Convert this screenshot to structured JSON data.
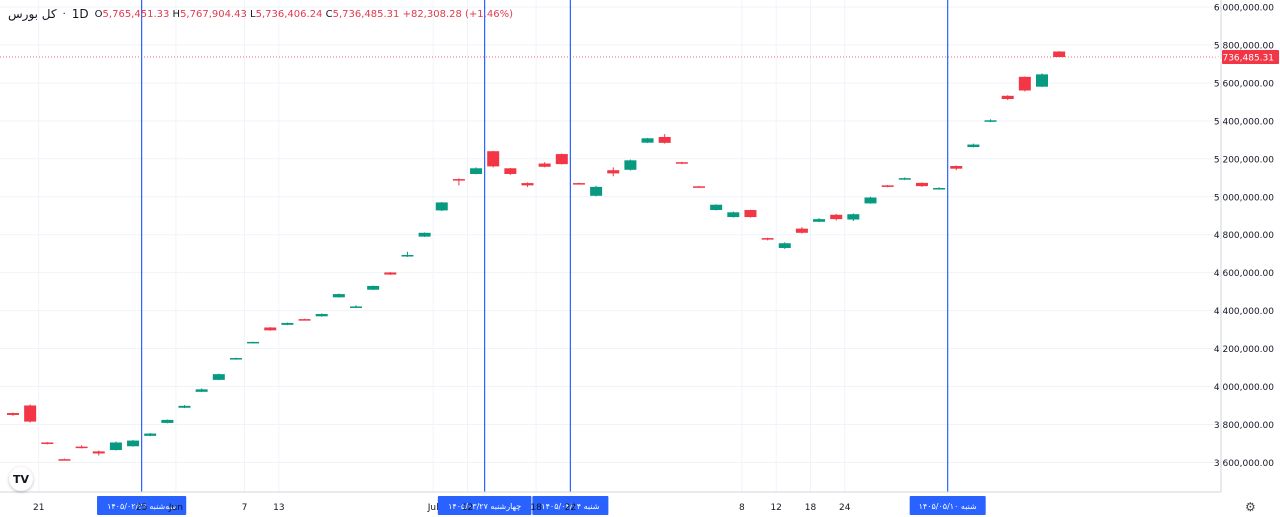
{
  "legend": {
    "symbol": "کل بورس",
    "timeframe": "1D",
    "open_label": "O",
    "open": "5,765,451.33",
    "high_label": "H",
    "high": "5,767,904.43",
    "low_label": "L",
    "low": "5,736,406.24",
    "close_label": "C",
    "close": "5,736,485.31",
    "change": "+82,308.28 (+1.46%)"
  },
  "colors": {
    "up": "#089981",
    "down": "#f23645",
    "vline": "#2962ff",
    "price_tag": "#f23645"
  },
  "icons": {
    "logo": "tradingview-logo-icon",
    "settings": "gear-icon"
  },
  "chart_data": {
    "type": "candlestick",
    "ylim": [
      3500000,
      6000000
    ],
    "y_ticks": [
      "6,000,000.00",
      "5,800,000.00",
      "5,600,000.00",
      "5,400,000.00",
      "5,200,000.00",
      "5,000,000.00",
      "4,800,000.00",
      "4,600,000.00",
      "4,400,000.00",
      "4,200,000.00",
      "4,000,000.00",
      "3,800,000.00",
      "3,600,000.00"
    ],
    "x_ticks": [
      {
        "label": "21",
        "index": 1
      },
      {
        "label": "25",
        "index": 7
      },
      {
        "label": "Jun",
        "index": 9
      },
      {
        "label": "7",
        "index": 13
      },
      {
        "label": "13",
        "index": 15
      },
      {
        "label": "Jul",
        "index": 24
      },
      {
        "label": "12",
        "index": 26
      },
      {
        "label": "18",
        "index": 30
      },
      {
        "label": "22",
        "index": 32
      },
      {
        "label": "8",
        "index": 42
      },
      {
        "label": "12",
        "index": 44
      },
      {
        "label": "18",
        "index": 46
      },
      {
        "label": "24",
        "index": 48
      }
    ],
    "grid": true,
    "last_price": "5,736,485.31",
    "last_price_value": 5736485,
    "event_lines": [
      {
        "label": "سه‌شنبه ۱۴۰۵/۰۲/۲۹",
        "index": 7
      },
      {
        "label": "چهارشنبه ۱۴۰۵/۰۳/۲۷",
        "index": 27
      },
      {
        "label": "شنبه ۱۴۰۵/۰۴/۰۴",
        "index": 32
      },
      {
        "label": "شنبه ۱۴۰۵/۰۵/۱۰",
        "index": 54
      }
    ],
    "candles": [
      {
        "o": 3860000,
        "h": 3862000,
        "l": 3845000,
        "c": 3850000
      },
      {
        "o": 3900000,
        "h": 3905000,
        "l": 3810000,
        "c": 3815000
      },
      {
        "o": 3705000,
        "h": 3707000,
        "l": 3695000,
        "c": 3698000
      },
      {
        "o": 3617000,
        "h": 3620000,
        "l": 3612000,
        "c": 3615000
      },
      {
        "o": 3683000,
        "h": 3690000,
        "l": 3673000,
        "c": 3677000
      },
      {
        "o": 3658000,
        "h": 3663000,
        "l": 3636000,
        "c": 3647000
      },
      {
        "o": 3665000,
        "h": 3710000,
        "l": 3663000,
        "c": 3705000
      },
      {
        "o": 3685000,
        "h": 3718000,
        "l": 3683000,
        "c": 3715000
      },
      {
        "o": 3740000,
        "h": 3755000,
        "l": 3738000,
        "c": 3752000
      },
      {
        "o": 3808000,
        "h": 3826000,
        "l": 3806000,
        "c": 3824000
      },
      {
        "o": 3888000,
        "h": 3902000,
        "l": 3886000,
        "c": 3898000
      },
      {
        "o": 3972000,
        "h": 3990000,
        "l": 3970000,
        "c": 3985000
      },
      {
        "o": 4035000,
        "h": 4068000,
        "l": 4033000,
        "c": 4065000
      },
      {
        "o": 4143000,
        "h": 4152000,
        "l": 4141000,
        "c": 4150000
      },
      {
        "o": 4230000,
        "h": 4236000,
        "l": 4228000,
        "c": 4235000
      },
      {
        "o": 4311000,
        "h": 4313000,
        "l": 4294000,
        "c": 4296000
      },
      {
        "o": 4325000,
        "h": 4337000,
        "l": 4323000,
        "c": 4335000
      },
      {
        "o": 4355000,
        "h": 4357000,
        "l": 4350000,
        "c": 4354000
      },
      {
        "o": 4370000,
        "h": 4385000,
        "l": 4368000,
        "c": 4382000
      },
      {
        "o": 4470000,
        "h": 4490000,
        "l": 4468000,
        "c": 4487000
      },
      {
        "o": 4418000,
        "h": 4428000,
        "l": 4414000,
        "c": 4422000
      },
      {
        "o": 4510000,
        "h": 4532000,
        "l": 4508000,
        "c": 4530000
      },
      {
        "o": 4601000,
        "h": 4603000,
        "l": 4588000,
        "c": 4590000
      },
      {
        "o": 4685000,
        "h": 4710000,
        "l": 4683000,
        "c": 4693000
      },
      {
        "o": 4790000,
        "h": 4812000,
        "l": 4788000,
        "c": 4810000
      },
      {
        "o": 4928000,
        "h": 4972000,
        "l": 4925000,
        "c": 4970000
      },
      {
        "o": 5093000,
        "h": 5097000,
        "l": 5060000,
        "c": 5090000
      },
      {
        "o": 5120000,
        "h": 5155000,
        "l": 5118000,
        "c": 5150000
      },
      {
        "o": 5240000,
        "h": 5242000,
        "l": 5155000,
        "c": 5160000
      },
      {
        "o": 5150000,
        "h": 5152000,
        "l": 5115000,
        "c": 5120000
      },
      {
        "o": 5072000,
        "h": 5075000,
        "l": 5052000,
        "c": 5060000
      },
      {
        "o": 5175000,
        "h": 5182000,
        "l": 5155000,
        "c": 5158000
      },
      {
        "o": 5225000,
        "h": 5228000,
        "l": 5170000,
        "c": 5172000
      },
      {
        "o": 5072000,
        "h": 5074000,
        "l": 5064000,
        "c": 5066000
      },
      {
        "o": 5005000,
        "h": 5058000,
        "l": 5002000,
        "c": 5052000
      },
      {
        "o": 5140000,
        "h": 5155000,
        "l": 5108000,
        "c": 5123000
      },
      {
        "o": 5142000,
        "h": 5196000,
        "l": 5138000,
        "c": 5192000
      },
      {
        "o": 5285000,
        "h": 5310000,
        "l": 5283000,
        "c": 5308000
      },
      {
        "o": 5315000,
        "h": 5330000,
        "l": 5280000,
        "c": 5284000
      },
      {
        "o": 5182000,
        "h": 5184000,
        "l": 5172000,
        "c": 5177000
      },
      {
        "o": 5055000,
        "h": 5057000,
        "l": 5049000,
        "c": 5052000
      },
      {
        "o": 4930000,
        "h": 4960000,
        "l": 4928000,
        "c": 4958000
      },
      {
        "o": 4893000,
        "h": 4922000,
        "l": 4890000,
        "c": 4918000
      },
      {
        "o": 4930000,
        "h": 4932000,
        "l": 4890000,
        "c": 4893000
      },
      {
        "o": 4782000,
        "h": 4784000,
        "l": 4770000,
        "c": 4774000
      },
      {
        "o": 4730000,
        "h": 4760000,
        "l": 4725000,
        "c": 4755000
      },
      {
        "o": 4832000,
        "h": 4840000,
        "l": 4806000,
        "c": 4810000
      },
      {
        "o": 4868000,
        "h": 4888000,
        "l": 4866000,
        "c": 4882000
      },
      {
        "o": 4905000,
        "h": 4910000,
        "l": 4875000,
        "c": 4882000
      },
      {
        "o": 4880000,
        "h": 4912000,
        "l": 4872000,
        "c": 4908000
      },
      {
        "o": 4965000,
        "h": 5000000,
        "l": 4963000,
        "c": 4996000
      },
      {
        "o": 5060000,
        "h": 5062000,
        "l": 5050000,
        "c": 5052000
      },
      {
        "o": 5090000,
        "h": 5102000,
        "l": 5088000,
        "c": 5098000
      },
      {
        "o": 5073000,
        "h": 5075000,
        "l": 5052000,
        "c": 5056000
      },
      {
        "o": 5040000,
        "h": 5050000,
        "l": 5038000,
        "c": 5046000
      },
      {
        "o": 5162000,
        "h": 5165000,
        "l": 5140000,
        "c": 5148000
      },
      {
        "o": 5262000,
        "h": 5280000,
        "l": 5260000,
        "c": 5275000
      },
      {
        "o": 5395000,
        "h": 5408000,
        "l": 5393000,
        "c": 5403000
      },
      {
        "o": 5532000,
        "h": 5535000,
        "l": 5510000,
        "c": 5515000
      },
      {
        "o": 5632000,
        "h": 5634000,
        "l": 5555000,
        "c": 5560000
      },
      {
        "o": 5580000,
        "h": 5650000,
        "l": 5578000,
        "c": 5645000
      },
      {
        "o": 5765451,
        "h": 5767904,
        "l": 5736406,
        "c": 5736485
      }
    ]
  }
}
